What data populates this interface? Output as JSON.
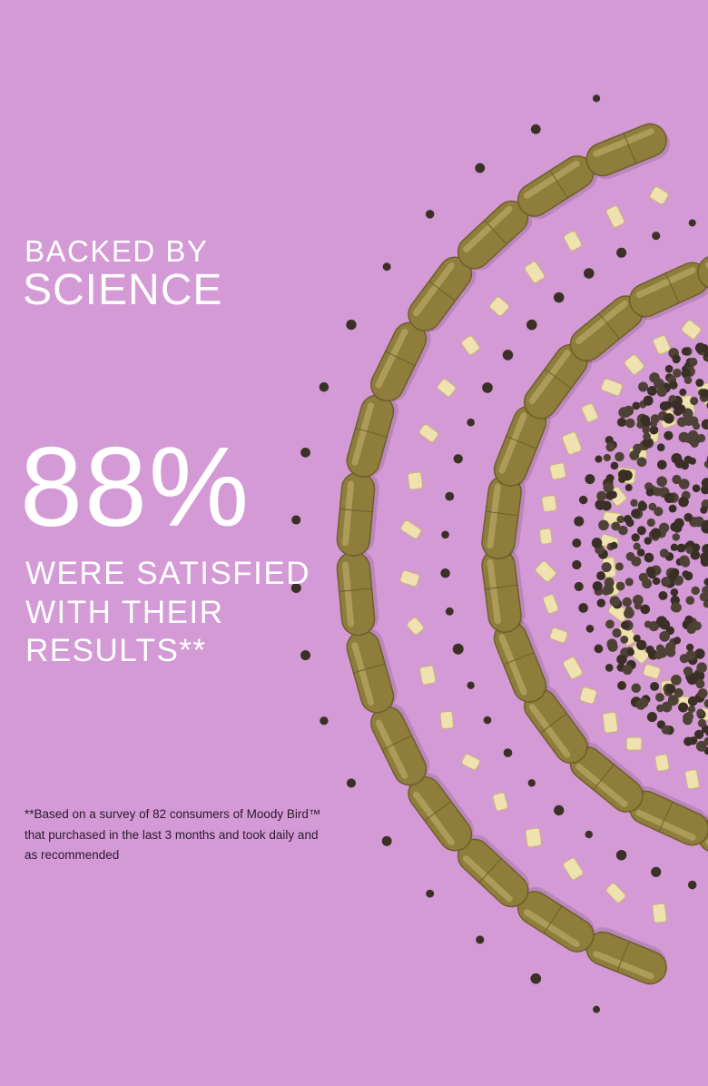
{
  "heading": {
    "lines": [
      "BACKED BY",
      "SCIENCE"
    ]
  },
  "stat": {
    "value": "88%",
    "lines": [
      "WERE SATISFIED",
      "WITH THEIR",
      "RESULTS**"
    ]
  },
  "footnote": {
    "lines": [
      "**Based on a survey of 82 consumers of Moody Bird™",
      "that purchased in the last 3 months and took daily and",
      "as recommended"
    ]
  }
}
